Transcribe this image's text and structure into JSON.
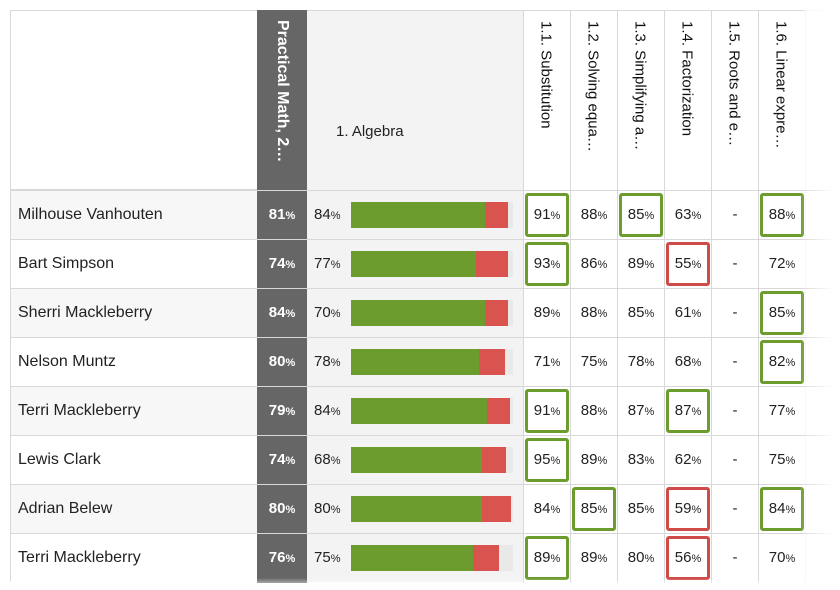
{
  "header": {
    "overall_label": "Practical Math, 2…",
    "section_label": "1. Algebra",
    "subtopics": [
      "1.1. Substitution",
      "1.2. Solving equa…",
      "1.3. Simplifying a…",
      "1.4. Factorization",
      "1.5. Roots and e…",
      "1.6. Linear expre…"
    ]
  },
  "colors": {
    "good": "#6d9c2e",
    "bad": "#d04a47",
    "overall_bg": "#666666"
  },
  "rows": [
    {
      "name": "Milhouse Vanhouten",
      "overall": "81",
      "algebra": "84",
      "bar": {
        "green": 0.83,
        "red": 0.14
      },
      "scores": [
        "91",
        "88",
        "85",
        "63",
        "-",
        "88"
      ],
      "marks": [
        "good",
        "",
        "good",
        "",
        "",
        "good"
      ]
    },
    {
      "name": "Bart Simpson",
      "overall": "74",
      "algebra": "77",
      "bar": {
        "green": 0.77,
        "red": 0.2
      },
      "scores": [
        "93",
        "86",
        "89",
        "55",
        "-",
        "72"
      ],
      "marks": [
        "good",
        "",
        "",
        "bad",
        "",
        ""
      ]
    },
    {
      "name": "Sherri Mackleberry",
      "overall": "84",
      "algebra": "70",
      "bar": {
        "green": 0.83,
        "red": 0.14
      },
      "scores": [
        "89",
        "88",
        "85",
        "61",
        "-",
        "85"
      ],
      "marks": [
        "",
        "",
        "",
        "",
        "",
        "good"
      ]
    },
    {
      "name": "Nelson Muntz",
      "overall": "80",
      "algebra": "78",
      "bar": {
        "green": 0.79,
        "red": 0.16
      },
      "scores": [
        "71",
        "75",
        "78",
        "68",
        "-",
        "82"
      ],
      "marks": [
        "",
        "",
        "",
        "",
        "",
        "good"
      ]
    },
    {
      "name": "Terri Mackleberry",
      "overall": "79",
      "algebra": "84",
      "bar": {
        "green": 0.84,
        "red": 0.14
      },
      "scores": [
        "91",
        "88",
        "87",
        "87",
        "-",
        "77"
      ],
      "marks": [
        "good",
        "",
        "",
        "good",
        "",
        ""
      ]
    },
    {
      "name": "Lewis Clark",
      "overall": "74",
      "algebra": "68",
      "bar": {
        "green": 0.81,
        "red": 0.15
      },
      "scores": [
        "95",
        "89",
        "83",
        "62",
        "-",
        "75"
      ],
      "marks": [
        "good",
        "",
        "",
        "",
        "",
        ""
      ]
    },
    {
      "name": "Adrian Belew",
      "overall": "80",
      "algebra": "80",
      "bar": {
        "green": 0.81,
        "red": 0.18
      },
      "scores": [
        "84",
        "85",
        "85",
        "59",
        "-",
        "84"
      ],
      "marks": [
        "",
        "good",
        "",
        "bad",
        "",
        "good"
      ]
    },
    {
      "name": "Terri Mackleberry",
      "overall": "76",
      "algebra": "75",
      "bar": {
        "green": 0.75,
        "red": 0.16
      },
      "scores": [
        "89",
        "89",
        "80",
        "56",
        "-",
        "70"
      ],
      "marks": [
        "good",
        "",
        "",
        "bad",
        "",
        ""
      ]
    }
  ]
}
